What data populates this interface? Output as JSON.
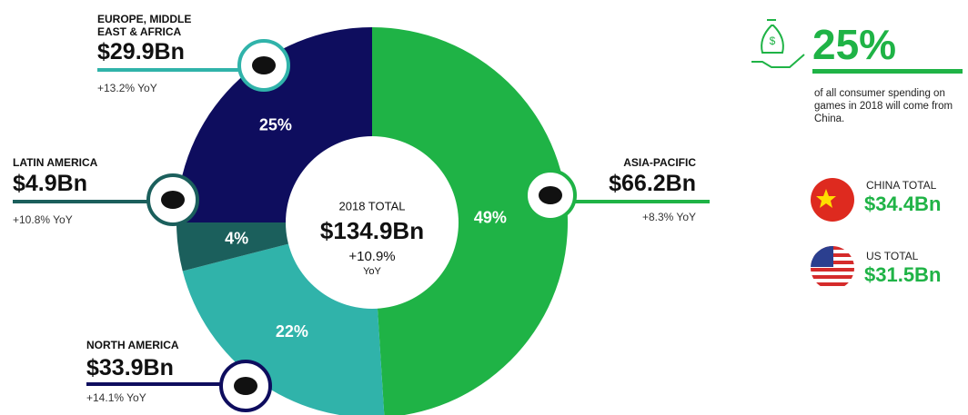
{
  "chart_data": {
    "type": "pie",
    "categories": [
      "ASIA-PACIFIC",
      "EUROPE, MIDDLE EAST & AFRICA",
      "LATIN AMERICA",
      "NORTH AMERICA"
    ],
    "values": [
      49,
      22,
      4,
      25
    ],
    "value_labels": [
      "49%",
      "22%",
      "4%",
      "25%"
    ],
    "colors": [
      "#1fb346",
      "#30b3aa",
      "#1b5f5c",
      "#0e0d5e"
    ],
    "amounts": [
      "$66.2Bn",
      "$29.9Bn",
      "$4.9Bn",
      "$33.9Bn"
    ],
    "growth": [
      "+8.3% YoY",
      "+13.2% YoY",
      "+10.8% YoY",
      "+14.1% YoY"
    ],
    "center": {
      "label": "2018 TOTAL",
      "total": "$134.9Bn",
      "growth": "+10.9%",
      "unit": "YoY"
    }
  },
  "highlight": {
    "headline": "25%",
    "text": "of all consumer spending on games in 2018 will come from China.",
    "china": {
      "label": "CHINA TOTAL",
      "value": "$34.4Bn"
    },
    "us": {
      "label": "US TOTAL",
      "value": "$31.5Bn"
    }
  }
}
